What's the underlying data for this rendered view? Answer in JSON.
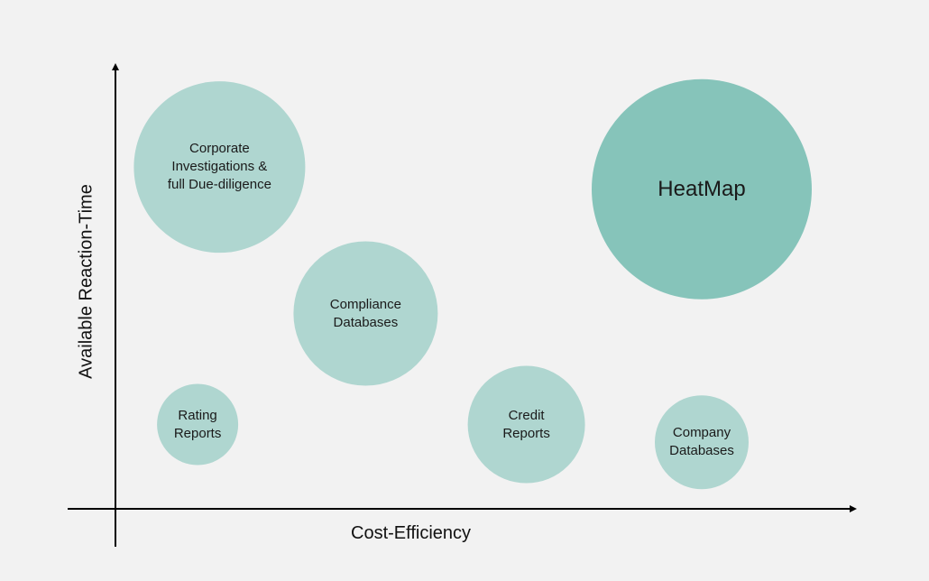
{
  "chart_data": {
    "type": "scatter",
    "title": "",
    "xlabel": "Cost-Efficiency",
    "ylabel": "Available Reaction-Time",
    "xlim": [
      0,
      100
    ],
    "ylim": [
      0,
      100
    ],
    "grid": false,
    "legend": "none",
    "bubble_color": "#afd6d0",
    "highlight_color": "#86c4ba",
    "axis_color": "#000000",
    "points": [
      {
        "label": "Corporate\nInvestigations &\nfull Due-diligence",
        "x": 14,
        "y": 77,
        "size": 95,
        "highlight": false
      },
      {
        "label": "Compliance\nDatabases",
        "x": 34,
        "y": 44,
        "size": 80,
        "highlight": false
      },
      {
        "label": "Rating\nReports",
        "x": 11,
        "y": 19,
        "size": 45,
        "highlight": false
      },
      {
        "label": "Credit\nReports",
        "x": 56,
        "y": 19,
        "size": 65,
        "highlight": false
      },
      {
        "label": "Company\nDatabases",
        "x": 80,
        "y": 15,
        "size": 52,
        "highlight": false
      },
      {
        "label": "HeatMap",
        "x": 80,
        "y": 72,
        "size": 122,
        "highlight": true
      }
    ]
  }
}
